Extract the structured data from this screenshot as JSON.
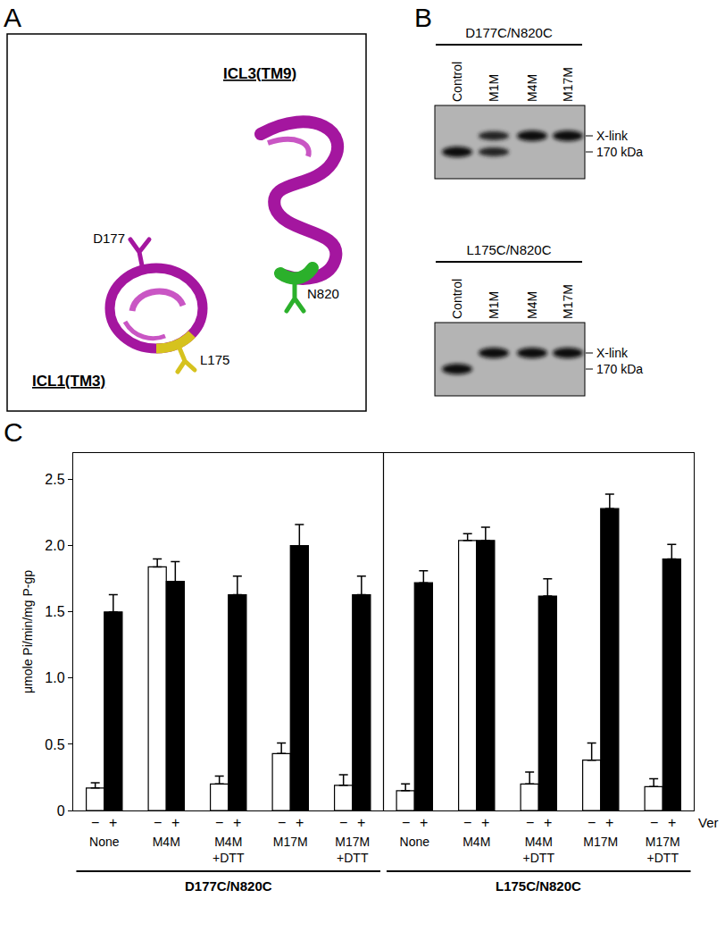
{
  "panels": [
    "A",
    "B",
    "C"
  ],
  "diagram": {
    "helices": [
      {
        "label": "ICL3(TM9)",
        "residues": [
          "N820"
        ]
      },
      {
        "label": "ICL1(TM3)",
        "residues": [
          "D177",
          "L175"
        ]
      }
    ]
  },
  "blots": [
    {
      "title": "D177C/N820C",
      "markers": [
        "X-link",
        "170 kDa"
      ],
      "lanes": [
        {
          "label": "Control",
          "bands": [
            "170 kDa"
          ]
        },
        {
          "label": "M1M",
          "bands": [
            "X-link",
            "170 kDa"
          ]
        },
        {
          "label": "M4M",
          "bands": [
            "X-link"
          ]
        },
        {
          "label": "M17M",
          "bands": [
            "X-link"
          ]
        }
      ]
    },
    {
      "title": "L175C/N820C",
      "markers": [
        "X-link",
        "170 kDa"
      ],
      "lanes": [
        {
          "label": "Control",
          "bands": [
            "170 kDa"
          ]
        },
        {
          "label": "M1M",
          "bands": [
            "X-link"
          ]
        },
        {
          "label": "M4M",
          "bands": [
            "X-link"
          ]
        },
        {
          "label": "M17M",
          "bands": [
            "X-link"
          ]
        }
      ]
    }
  ],
  "chart_data": {
    "type": "bar",
    "y_label": "μmole Pi/min/mg P-gp",
    "ylim": [
      0,
      2.7
    ],
    "yticks": [
      0,
      0.5,
      {
        "value": 1,
        "label": "1.0"
      },
      1.5,
      {
        "value": 2,
        "label": "2.0"
      },
      2.5
    ],
    "series_label": "Ver",
    "groups": [
      {
        "label": "D177C/N820C",
        "categories": [
          "None",
          "M4M",
          "M4M +DTT",
          "M17M",
          "M17M +DTT"
        ],
        "series": [
          {
            "name": "−",
            "color": "#ffffff",
            "values": [
              0.17,
              1.84,
              0.2,
              0.43,
              0.19
            ],
            "errors": [
              0.04,
              0.06,
              0.06,
              0.08,
              0.08
            ]
          },
          {
            "name": "+",
            "color": "#000000",
            "values": [
              1.5,
              1.73,
              1.63,
              2.0,
              1.63
            ],
            "errors": [
              0.13,
              0.15,
              0.14,
              0.16,
              0.14
            ]
          }
        ]
      },
      {
        "label": "L175C/N820C",
        "categories": [
          "None",
          "M4M",
          "M4M +DTT",
          "M17M",
          "M17M +DTT"
        ],
        "series": [
          {
            "name": "−",
            "color": "#ffffff",
            "values": [
              0.15,
              2.04,
              0.2,
              0.38,
              0.18
            ],
            "errors": [
              0.05,
              0.05,
              0.09,
              0.13,
              0.06
            ]
          },
          {
            "name": "+",
            "color": "#000000",
            "values": [
              1.72,
              2.04,
              1.62,
              2.28,
              1.9
            ],
            "errors": [
              0.09,
              0.1,
              0.13,
              0.11,
              0.11
            ]
          }
        ]
      }
    ]
  }
}
